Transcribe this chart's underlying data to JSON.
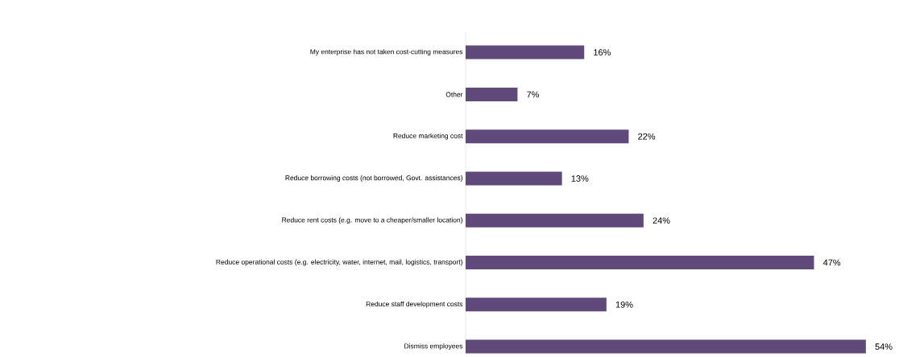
{
  "chart_data": {
    "type": "bar",
    "orientation": "horizontal",
    "color": "#604a7b",
    "categories": [
      "My enterprise has not taken cost-cutting measures",
      "Other",
      "Reduce marketing cost",
      "Reduce borrowing costs (not borrowed, Govt. assistances)",
      "Reduce rent costs (e.g. move to a cheaper/smaller location)",
      "Reduce operational costs (e.g. electricity, water, internet, mail, logistics, transport)",
      "Reduce staff development costs",
      "Dismiss employees"
    ],
    "values": [
      16,
      7,
      22,
      13,
      24,
      47,
      19,
      54
    ],
    "value_labels": [
      "16%",
      "7%",
      "22%",
      "13%",
      "24%",
      "47%",
      "19%",
      "54%"
    ]
  }
}
